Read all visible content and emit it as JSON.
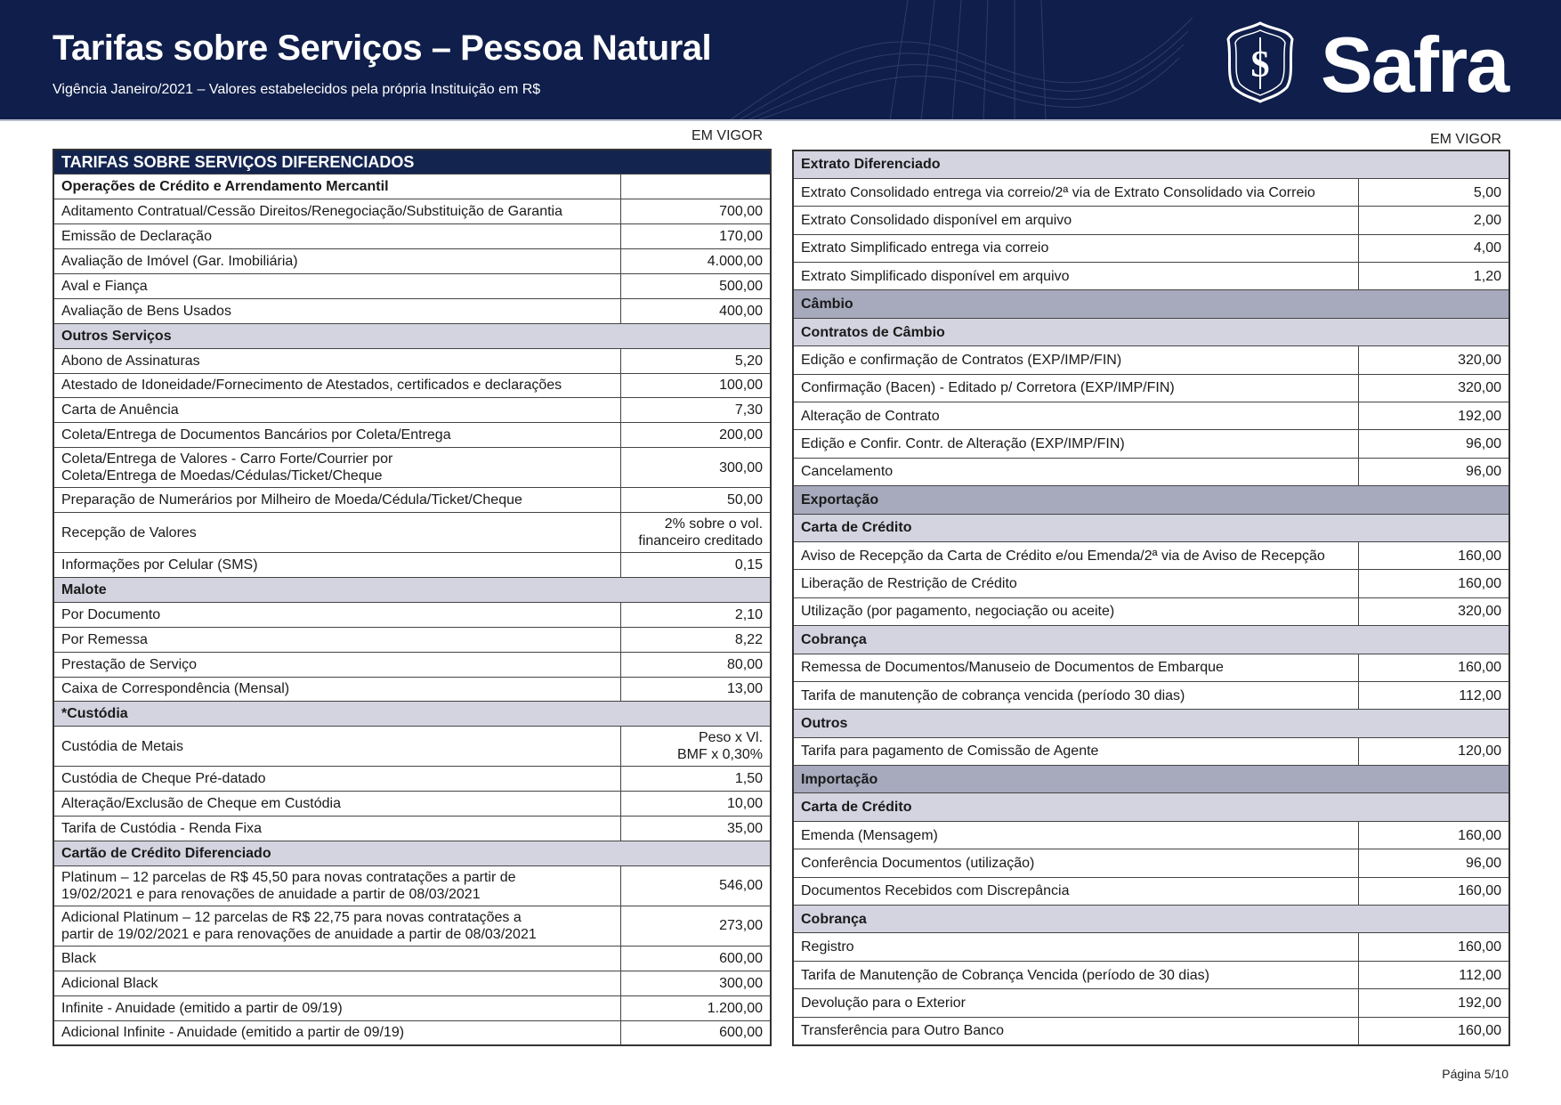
{
  "header": {
    "title": "Tarifas sobre Serviços – Pessoa Natural",
    "subtitle": "Vigência Janeiro/2021 – Valores estabelecidos pela própria Instituição em R$",
    "brand": "Safra",
    "background_color": "#0f1e4a"
  },
  "left": {
    "em_vigor": "EM VIGOR",
    "rows": [
      {
        "type": "title",
        "label": "TARIFAS SOBRE SERVIÇOS DIFERENCIADOS"
      },
      {
        "type": "section-white",
        "label": "Operações de Crédito e Arrendamento Mercantil",
        "value": ""
      },
      {
        "type": "item",
        "label": "Aditamento Contratual/Cessão Direitos/Renegociação/Substituição de Garantia",
        "value": "700,00"
      },
      {
        "type": "item",
        "label": "Emissão de Declaração",
        "value": "170,00"
      },
      {
        "type": "item",
        "label": "Avaliação de Imóvel (Gar. Imobiliária)",
        "value": "4.000,00"
      },
      {
        "type": "item",
        "label": "Aval e Fiança",
        "value": "500,00"
      },
      {
        "type": "item",
        "label": "Avaliação de Bens Usados",
        "value": "400,00"
      },
      {
        "type": "section",
        "label": "Outros Serviços"
      },
      {
        "type": "item",
        "label": "Abono de Assinaturas",
        "value": "5,20"
      },
      {
        "type": "item",
        "label": "Atestado de Idoneidade/Fornecimento de Atestados, certificados e declarações",
        "value": "100,00"
      },
      {
        "type": "item",
        "label": "Carta de Anuência",
        "value": "7,30"
      },
      {
        "type": "item",
        "label": "Coleta/Entrega de Documentos Bancários por Coleta/Entrega",
        "value": "200,00"
      },
      {
        "type": "item",
        "tall": true,
        "label": "Coleta/Entrega de Valores - Carro Forte/Courrier por",
        "label2": "Coleta/Entrega de Moedas/Cédulas/Ticket/Cheque",
        "value": "300,00"
      },
      {
        "type": "item",
        "label": "Preparação de Numerários por Milheiro de Moeda/Cédula/Ticket/Cheque",
        "value": "50,00"
      },
      {
        "type": "item",
        "tall": true,
        "label": "Recepção de Valores",
        "value": "2% sobre o vol.",
        "value2": "financeiro creditado"
      },
      {
        "type": "item",
        "label": "Informações por Celular (SMS)",
        "value": "0,15"
      },
      {
        "type": "section",
        "label": "Malote"
      },
      {
        "type": "item",
        "label": "Por Documento",
        "value": "2,10"
      },
      {
        "type": "item",
        "label": "Por Remessa",
        "value": "8,22"
      },
      {
        "type": "item",
        "label": "Prestação de Serviço",
        "value": "80,00"
      },
      {
        "type": "item",
        "label": "Caixa de Correspondência (Mensal)",
        "value": "13,00"
      },
      {
        "type": "section",
        "label": "*Custódia"
      },
      {
        "type": "item",
        "tall": true,
        "label": "Custódia de Metais",
        "value": "Peso x Vl.",
        "value2": "BMF x 0,30%"
      },
      {
        "type": "item",
        "label": "Custódia de Cheque Pré-datado",
        "value": "1,50"
      },
      {
        "type": "item",
        "label": "Alteração/Exclusão de Cheque em Custódia",
        "value": "10,00"
      },
      {
        "type": "item",
        "label": "Tarifa de Custódia - Renda Fixa",
        "value": "35,00"
      },
      {
        "type": "section",
        "label": "Cartão de Crédito Diferenciado"
      },
      {
        "type": "item",
        "tall": true,
        "label": "Platinum – 12 parcelas de R$ 45,50 para novas contratações a partir de",
        "label2": "19/02/2021 e para renovações de anuidade a partir de  08/03/2021",
        "value": "546,00"
      },
      {
        "type": "item",
        "tall": true,
        "label": "Adicional Platinum – 12 parcelas de R$ 22,75 para novas contratações a",
        "label2": "partir de 19/02/2021 e para renovações de anuidade a partir de 08/03/2021",
        "value": "273,00"
      },
      {
        "type": "item",
        "label": "Black",
        "value": "600,00"
      },
      {
        "type": "item",
        "label": "Adicional Black",
        "value": "300,00"
      },
      {
        "type": "item",
        "label": "Infinite - Anuidade (emitido a partir de 09/19)",
        "value": "1.200,00"
      },
      {
        "type": "item",
        "label": "Adicional Infinite - Anuidade (emitido a partir de 09/19)",
        "value": "600,00"
      }
    ]
  },
  "right": {
    "em_vigor": "EM VIGOR",
    "rows": [
      {
        "type": "section",
        "label": "Extrato Diferenciado"
      },
      {
        "type": "item",
        "label": "Extrato Consolidado entrega via correio/2ª via de Extrato Consolidado via Correio",
        "value": "5,00"
      },
      {
        "type": "item",
        "label": "Extrato Consolidado disponível em arquivo",
        "value": "2,00"
      },
      {
        "type": "item",
        "label": "Extrato Simplificado entrega via correio",
        "value": "4,00"
      },
      {
        "type": "item",
        "label": "Extrato Simplificado disponível em arquivo",
        "value": "1,20"
      },
      {
        "type": "section2",
        "label": "Câmbio"
      },
      {
        "type": "section",
        "label": "Contratos de Câmbio"
      },
      {
        "type": "item",
        "label": "Edição e confirmação de Contratos (EXP/IMP/FIN)",
        "value": "320,00"
      },
      {
        "type": "item",
        "label": "Confirmação (Bacen) - Editado p/ Corretora (EXP/IMP/FIN)",
        "value": "320,00"
      },
      {
        "type": "item",
        "label": "Alteração de Contrato",
        "value": "192,00"
      },
      {
        "type": "item",
        "label": "Edição e Confir. Contr. de Alteração (EXP/IMP/FIN)",
        "value": "96,00"
      },
      {
        "type": "item",
        "label": "Cancelamento",
        "value": "96,00"
      },
      {
        "type": "section2",
        "label": "Exportação"
      },
      {
        "type": "section",
        "label": "Carta de Crédito"
      },
      {
        "type": "item",
        "label": "Aviso de Recepção da Carta de Crédito e/ou Emenda/2ª via de Aviso de Recepção",
        "value": "160,00"
      },
      {
        "type": "item",
        "label": "Liberação de Restrição de Crédito",
        "value": "160,00"
      },
      {
        "type": "item",
        "label": "Utilização (por pagamento, negociação ou aceite)",
        "value": "320,00"
      },
      {
        "type": "section",
        "label": "Cobrança"
      },
      {
        "type": "item",
        "label": "Remessa de Documentos/Manuseio de Documentos de Embarque",
        "value": "160,00"
      },
      {
        "type": "item",
        "label": "Tarifa de manutenção de cobrança vencida (período 30 dias)",
        "value": "112,00"
      },
      {
        "type": "section",
        "label": "Outros"
      },
      {
        "type": "item",
        "label": "Tarifa para pagamento de Comissão de Agente",
        "value": "120,00"
      },
      {
        "type": "section2",
        "label": "Importação"
      },
      {
        "type": "section",
        "label": "Carta de Crédito"
      },
      {
        "type": "item",
        "label": "Emenda (Mensagem)",
        "value": "160,00"
      },
      {
        "type": "item",
        "label": "Conferência Documentos (utilização)",
        "value": "96,00"
      },
      {
        "type": "item",
        "label": "Documentos Recebidos com Discrepância",
        "value": "160,00"
      },
      {
        "type": "section",
        "label": "Cobrança"
      },
      {
        "type": "item",
        "label": "Registro",
        "value": "160,00"
      },
      {
        "type": "item",
        "label": "Tarifa de Manutenção de Cobrança Vencida (período de 30 dias)",
        "value": "112,00"
      },
      {
        "type": "item",
        "label": "Devolução para o Exterior",
        "value": "192,00"
      },
      {
        "type": "item",
        "label": "Transferência para Outro Banco",
        "value": "160,00"
      }
    ]
  },
  "footer": {
    "page": "Página 5/10"
  },
  "colors": {
    "navy": "#13244f",
    "section_light": "#d3d4e0",
    "section_dark": "#a7aabd"
  }
}
